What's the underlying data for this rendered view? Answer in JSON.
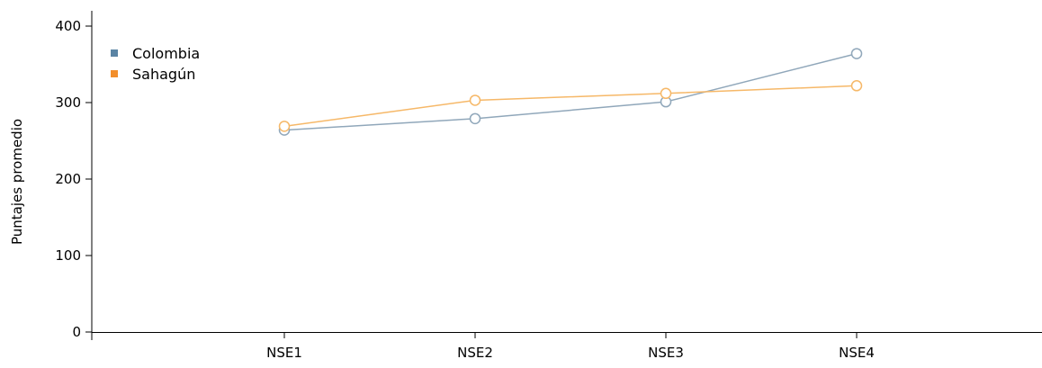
{
  "chart_data": {
    "type": "line",
    "title": "",
    "xlabel": "",
    "ylabel": "Puntajes promedio",
    "categories": [
      "NSE1",
      "NSE2",
      "NSE3",
      "NSE4"
    ],
    "ylim": [
      0,
      420
    ],
    "yticks": [
      0,
      100,
      200,
      300,
      400
    ],
    "grid": false,
    "legend_position": "top-left",
    "series": [
      {
        "name": "Colombia",
        "color": "#5b84a4",
        "line_color": "#90a7ba",
        "values": [
          264,
          279,
          301,
          364
        ]
      },
      {
        "name": "Sahagún",
        "color": "#f28e2b",
        "line_color": "#f6b868",
        "values": [
          269,
          303,
          312,
          322
        ]
      }
    ]
  }
}
